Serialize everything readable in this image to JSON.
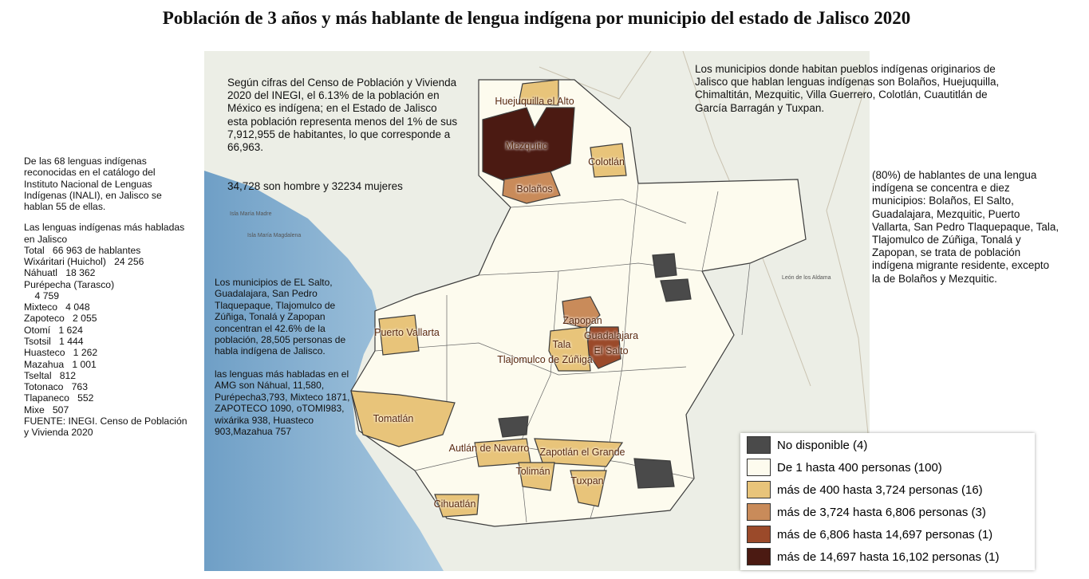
{
  "title": "Población de 3 años y más hablante de lengua indígena por municipio del estado de Jalisco 2020",
  "left_panel": {
    "intro": "De las 68 lenguas indígenas reconocidas en el catálogo del Instituto Nacional de Lenguas Indígenas (INALI), en Jalisco se hablan 55 de ellas.",
    "list_title": "Las lenguas indígenas más habladas en Jalisco",
    "languages": [
      {
        "name": "Total",
        "count": "66 963 de hablantes"
      },
      {
        "name": "Wixáritari (Huichol)",
        "count": "24 256"
      },
      {
        "name": "Náhuatl",
        "count": "18 362"
      },
      {
        "name": "Purépecha (Tarasco)",
        "count": "4 759"
      },
      {
        "name": "Mixteco",
        "count": "4 048"
      },
      {
        "name": "Zapoteco",
        "count": "2 055"
      },
      {
        "name": "Otomí",
        "count": "1 624"
      },
      {
        "name": "Tsotsil",
        "count": "1 444"
      },
      {
        "name": "Huasteco",
        "count": "1 262"
      },
      {
        "name": "Mazahua",
        "count": "1 001"
      },
      {
        "name": "Tseltal",
        "count": "812"
      },
      {
        "name": "Totonaco",
        "count": "763"
      },
      {
        "name": "Tlapaneco",
        "count": "552"
      },
      {
        "name": "Mixe",
        "count": "507"
      }
    ],
    "source": "FUENTE: INEGI. Censo de Población y Vivienda 2020"
  },
  "census_text": "Según cifras del Censo de Población y Vivienda 2020 del INEGI, el 6.13% de la población en México es indígena; en el Estado de Jalisco esta población representa menos del 1% de sus 7,912,955 de habitantes, lo que corresponde a 66,963.",
  "gender_text": "34,728 son hombre y 32234 mujeres",
  "amg_text": "Los municipios de EL Salto, Guadalajara, San Pedro Tlaquepaque, Tlajomulco de Zúñiga, Tonalá y Zapopan concentran el 42.6% de la población, 28,505 personas de habla indígena de Jalisco.",
  "amg_languages_text": "las lenguas más habladas en el AMG son Náhual, 11,580, Purépecha3,793, Mixteco 1871, ZAPOTECO 1090, oTOMI983, wixárika 938, Huasteco 903,Mazahua 757",
  "native_text": "Los municipios donde habitan pueblos indígenas originarios de Jalisco que hablan lenguas indígenas son Bolaños, Huejuquilla, Chimaltitán, Mezquitic, Villa Guerrero, Colotlán, Cuautitlán de García Barragán y Tuxpan.",
  "concentration_text": "(80%) de hablantes de una lengua indígena se concentra e diez municipios:  Bolaños, El Salto, Guadalajara, Mezquitic, Puerto Vallarta, San Pedro Tlaquepaque, Tala, Tlajomulco de Zúñiga, Tonalá y Zapopan, se trata de población indígena migrante residente, excepto la de Bolaños y Mezquitic.",
  "map_labels": [
    "Huejuquilla el Alto",
    "Mezquitic",
    "Colotlán",
    "Bolaños",
    "Puerto Vallarta",
    "Zapopan",
    "Guadalajara",
    "Tala",
    "El Salto",
    "Tlajomulco de Zúñiga",
    "Tomatlán",
    "Autlán de Navarro",
    "Zapotlán el Grande",
    "Tolimán",
    "Tuxpan",
    "Cihuatlán"
  ],
  "base_labels": [
    "Isla María Madre",
    "Isla María Magdalena",
    "León de los Aldama"
  ],
  "legend": [
    {
      "label": "No disponible (4)",
      "color": "#4a4a4a"
    },
    {
      "label": "De 1 hasta 400 personas (100)",
      "color": "#fdfbee"
    },
    {
      "label": "más de 400 hasta 3,724 personas (16)",
      "color": "#e8c47a"
    },
    {
      "label": "más de 3,724 hasta 6,806 personas (3)",
      "color": "#c98b5a"
    },
    {
      "label": "más de 6,806 hasta 14,697 personas (1)",
      "color": "#9b4a2a"
    },
    {
      "label": "más de 14,697 hasta 16,102 personas (1)",
      "color": "#4b1a12"
    }
  ]
}
